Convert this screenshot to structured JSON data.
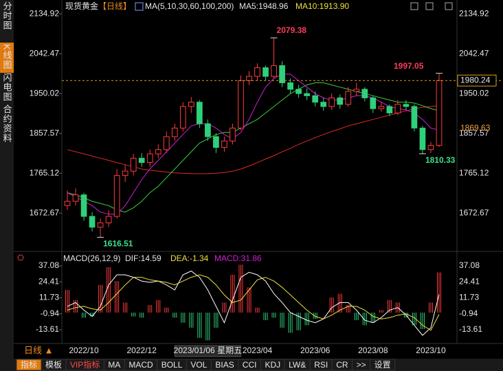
{
  "sidebar_tabs": [
    "分时图",
    "K线图",
    "闪电图",
    "合约资料"
  ],
  "period_label": "日线 ▲",
  "toolbar": [
    "指标",
    "模板",
    "VIP指标",
    "MA",
    "MACD",
    "BOLL",
    "VOL",
    "BIAS",
    "CCI",
    "KDJ",
    "LW&",
    "RSI",
    "CR",
    ">>",
    "设置"
  ],
  "chart_data": [
    {
      "type": "candlestick",
      "header": {
        "symbol": "现货黄金",
        "period": "【日线】",
        "ma_label": "MA(5,10,30,60,100,200)",
        "ma5": "MA5:1948.96",
        "ma10": "MA10:1913.90"
      },
      "categories": [
        null,
        null,
        "2022/10",
        null,
        null,
        null,
        null,
        null,
        null,
        "2022/12",
        null,
        null,
        null,
        null,
        null,
        null,
        null,
        null,
        null,
        null,
        null,
        null,
        null,
        "2023/04",
        null,
        null,
        null,
        null,
        null,
        null,
        "2023/06",
        null,
        null,
        null,
        null,
        null,
        null,
        "2023/08",
        null,
        null,
        null,
        null,
        null,
        null,
        "2023/10",
        null
      ],
      "cursor": {
        "index": 17,
        "label": "2023/01/06 星期五"
      },
      "ohlc": [
        [
          1690,
          1725,
          1680,
          1700
        ],
        [
          1700,
          1730,
          1690,
          1715
        ],
        [
          1715,
          1720,
          1655,
          1665
        ],
        [
          1665,
          1675,
          1630,
          1640
        ],
        [
          1640,
          1660,
          1616.51,
          1650
        ],
        [
          1650,
          1680,
          1640,
          1665
        ],
        [
          1665,
          1775,
          1660,
          1760
        ],
        [
          1760,
          1785,
          1745,
          1770
        ],
        [
          1770,
          1810,
          1760,
          1800
        ],
        [
          1800,
          1812,
          1780,
          1790
        ],
        [
          1790,
          1820,
          1780,
          1810
        ],
        [
          1810,
          1832,
          1800,
          1820
        ],
        [
          1820,
          1862,
          1812,
          1850
        ],
        [
          1850,
          1880,
          1840,
          1870
        ],
        [
          1870,
          1930,
          1862,
          1920
        ],
        [
          1920,
          1942,
          1905,
          1930
        ],
        [
          1930,
          1935,
          1870,
          1880
        ],
        [
          1880,
          1890,
          1840,
          1850
        ],
        [
          1850,
          1858,
          1812,
          1825
        ],
        [
          1825,
          1850,
          1815,
          1840
        ],
        [
          1840,
          1880,
          1832,
          1870
        ],
        [
          1870,
          1992,
          1865,
          1980
        ],
        [
          1980,
          2002,
          1970,
          1990
        ],
        [
          1990,
          2020,
          1980,
          2010
        ],
        [
          2010,
          2015,
          1980,
          1990
        ],
        [
          1990,
          2079.38,
          1985,
          2015
        ],
        [
          2015,
          2025,
          1965,
          1975
        ],
        [
          1975,
          1985,
          1950,
          1960
        ],
        [
          1960,
          1970,
          1940,
          1950
        ],
        [
          1950,
          1962,
          1935,
          1945
        ],
        [
          1945,
          1955,
          1920,
          1930
        ],
        [
          1930,
          1940,
          1910,
          1920
        ],
        [
          1920,
          1950,
          1912,
          1940
        ],
        [
          1940,
          1948,
          1915,
          1925
        ],
        [
          1925,
          1965,
          1920,
          1955
        ],
        [
          1955,
          1975,
          1945,
          1960
        ],
        [
          1960,
          1965,
          1932,
          1940
        ],
        [
          1940,
          1945,
          1905,
          1915
        ],
        [
          1915,
          1930,
          1908,
          1920
        ],
        [
          1920,
          1925,
          1898,
          1905
        ],
        [
          1905,
          1935,
          1900,
          1925
        ],
        [
          1925,
          1935,
          1912,
          1920
        ],
        [
          1920,
          1925,
          1862,
          1870
        ],
        [
          1870,
          1875,
          1810.33,
          1820
        ],
        [
          1820,
          1838,
          1812,
          1830
        ],
        [
          1830,
          1997.05,
          1826,
          1980.24
        ]
      ],
      "series": [
        {
          "color": "#e02828",
          "values": [
            1820,
            1815,
            1810,
            1805,
            1800,
            1795,
            1790,
            1785,
            1780,
            1775,
            1772,
            1770,
            1768,
            1766,
            1765,
            1764,
            1764,
            1764,
            1765,
            1767,
            1770,
            1775,
            1782,
            1790,
            1798,
            1806,
            1815,
            1823,
            1832,
            1840,
            1848,
            1855,
            1862,
            1868,
            1875,
            1880,
            1885,
            1890,
            1895,
            1900,
            1905,
            1910,
            1915,
            1918,
            1920,
            1922
          ]
        },
        {
          "color": "#3ccf3c",
          "values": [
            1720,
            1715,
            1708,
            1700,
            1695,
            1690,
            1680,
            1675,
            1685,
            1700,
            1720,
            1735,
            1755,
            1775,
            1795,
            1815,
            1835,
            1845,
            1855,
            1860,
            1860,
            1870,
            1880,
            1890,
            1905,
            1920,
            1935,
            1950,
            1960,
            1970,
            1975,
            1975,
            1970,
            1965,
            1960,
            1955,
            1950,
            1945,
            1940,
            1935,
            1930,
            1930,
            1928,
            1922,
            1915,
            1910
          ]
        },
        {
          "color": "#d21fd2",
          "values": [
            1720,
            1710,
            1700,
            1690,
            1675,
            1670,
            1670,
            1690,
            1720,
            1750,
            1775,
            1795,
            1815,
            1835,
            1855,
            1875,
            1880,
            1880,
            1870,
            1855,
            1845,
            1860,
            1890,
            1930,
            1965,
            1985,
            1995,
            1995,
            1980,
            1965,
            1950,
            1940,
            1935,
            1935,
            1940,
            1945,
            1945,
            1940,
            1930,
            1920,
            1915,
            1912,
            1905,
            1890,
            1870,
            1865
          ]
        }
      ],
      "annotations": [
        {
          "index": 25,
          "value": 2079.38,
          "color": "#ff3c5a"
        },
        {
          "index": 45,
          "value": 1997.05,
          "color": "#ff3c5a"
        },
        {
          "index": 4,
          "value": 1616.51,
          "color": "#3ce08c"
        },
        {
          "index": 43,
          "value": 1810.33,
          "color": "#3ce08c"
        }
      ],
      "last_price": 1980.24,
      "ref_price": 1869.63,
      "ylim": [
        1590,
        2148
      ],
      "yticks": [
        2134.92,
        2042.47,
        1950.02,
        1857.57,
        1765.12,
        1672.67
      ],
      "up_color": "#ff3c3c",
      "down_color": "#2fd07a"
    },
    {
      "type": "macd",
      "header": {
        "name": "MACD(26,12,9)",
        "dif": "DIF:14.59",
        "dea": "DEA:-1.34",
        "macd": "MACD:31.86"
      },
      "values": [
        18,
        10,
        -4,
        -3,
        22,
        36,
        25,
        8,
        -3,
        -4,
        6,
        10,
        4,
        -4,
        -8,
        -12,
        -20,
        -22,
        -12,
        8,
        30,
        38,
        20,
        4,
        -6,
        -4,
        -12,
        -16,
        -14,
        -10,
        -5,
        0,
        12,
        15,
        6,
        -6,
        -10,
        -8,
        2,
        10,
        8,
        -4,
        -10,
        -13,
        8,
        31.86
      ],
      "series": [
        {
          "color": "#ffffff",
          "values": [
            5,
            8,
            2,
            -3,
            5,
            22,
            30,
            30,
            28,
            25,
            24,
            25,
            22,
            18,
            30,
            33,
            28,
            18,
            5,
            -8,
            10,
            28,
            32,
            30,
            25,
            15,
            8,
            0,
            -3,
            -6,
            -8,
            -5,
            4,
            8,
            8,
            2,
            -6,
            -8,
            -4,
            2,
            4,
            -2,
            -10,
            -18,
            -12,
            14.59
          ]
        },
        {
          "color": "#f0e040",
          "values": [
            2,
            4,
            5,
            3,
            2,
            8,
            15,
            22,
            28,
            28,
            26,
            25,
            24,
            22,
            25,
            28,
            30,
            28,
            22,
            14,
            8,
            10,
            18,
            26,
            28,
            25,
            20,
            14,
            8,
            2,
            -3,
            -5,
            -2,
            2,
            5,
            5,
            2,
            -3,
            -5,
            -4,
            -2,
            -1,
            -4,
            -10,
            -14,
            -1.34
          ]
        }
      ],
      "ylim": [
        -23.4,
        43.6
      ],
      "yticks": [
        37.08,
        24.41,
        11.73,
        -0.94,
        -13.61
      ],
      "up_color": "#ff3c3c",
      "down_color": "#2fd07a"
    }
  ]
}
